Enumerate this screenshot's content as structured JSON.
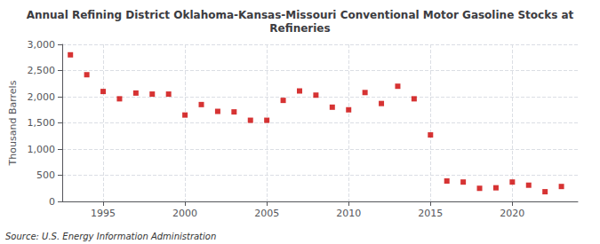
{
  "chart_data": {
    "type": "scatter",
    "title": "Annual Refining District Oklahoma-Kansas-Missouri Conventional Motor Gasoline Stocks at\nRefineries",
    "ylabel": "Thousand Barrels",
    "annotations": [
      "Source: U.S. Energy Information Administration"
    ],
    "x": [
      1993,
      1994,
      1995,
      1996,
      1997,
      1998,
      1999,
      2000,
      2001,
      2002,
      2003,
      2004,
      2005,
      2006,
      2007,
      2008,
      2009,
      2010,
      2011,
      2012,
      2013,
      2014,
      2015,
      2016,
      2017,
      2018,
      2019,
      2020,
      2021,
      2022,
      2023
    ],
    "values": [
      2800,
      2420,
      2100,
      1960,
      2070,
      2050,
      2050,
      1650,
      1850,
      1720,
      1710,
      1550,
      1550,
      1930,
      2110,
      2030,
      1800,
      1750,
      2080,
      1870,
      2200,
      1960,
      1270,
      390,
      370,
      250,
      260,
      370,
      310,
      185,
      285
    ],
    "color": "#cc0000",
    "marker": "square",
    "xlim": [
      1992.5,
      2024
    ],
    "xticks": [
      1995,
      2000,
      2005,
      2010,
      2015,
      2020
    ],
    "ylim": [
      0,
      3000
    ],
    "yticks": [
      0,
      500,
      {
        "value": 1000,
        "label": "1,000"
      },
      {
        "value": 1500,
        "label": "1,500"
      },
      {
        "value": 2000,
        "label": "2,000"
      },
      {
        "value": 2500,
        "label": "2,500"
      },
      {
        "value": 3000,
        "label": "3,000"
      }
    ],
    "grid": true
  }
}
